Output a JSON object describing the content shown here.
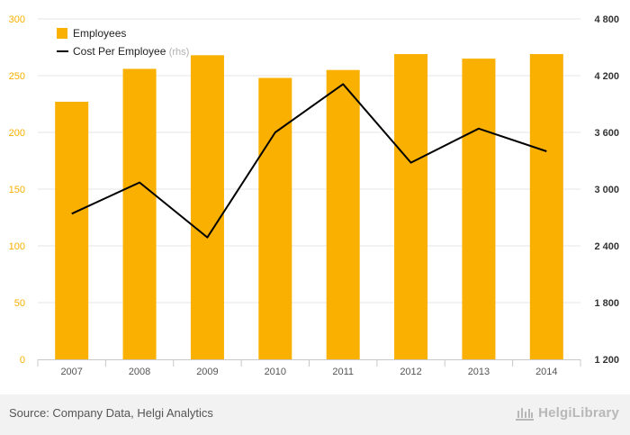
{
  "chart_data": {
    "type": "bar",
    "categories": [
      "2007",
      "2008",
      "2009",
      "2010",
      "2011",
      "2012",
      "2013",
      "2014"
    ],
    "series": [
      {
        "name": "Employees",
        "type": "bar",
        "axis": "left",
        "color": "#f9b000",
        "values": [
          227,
          256,
          268,
          248,
          255,
          269,
          265,
          269
        ]
      },
      {
        "name": "Cost Per Employee",
        "name_suffix": "(rhs)",
        "type": "line",
        "axis": "right",
        "color": "#000000",
        "values": [
          2740,
          3070,
          2490,
          3600,
          4110,
          3280,
          3640,
          3400
        ]
      }
    ],
    "ylim_left": [
      0,
      300
    ],
    "yticks_left": [
      "0",
      "50",
      "100",
      "150",
      "200",
      "250",
      "300"
    ],
    "ylim_right": [
      1200,
      4800
    ],
    "yticks_right": [
      "1 200",
      "1 800",
      "2 400",
      "3 000",
      "3 600",
      "4 200",
      "4 800"
    ],
    "legend_position": "top-left",
    "grid": "horizontal"
  },
  "footer": {
    "source": "Source: Company Data, Helgi Analytics",
    "logo_text": "HelgiLibrary"
  },
  "colors": {
    "left_axis_text": "#f9b000",
    "right_axis_text": "#333333",
    "grid": "#e6e6e6"
  }
}
